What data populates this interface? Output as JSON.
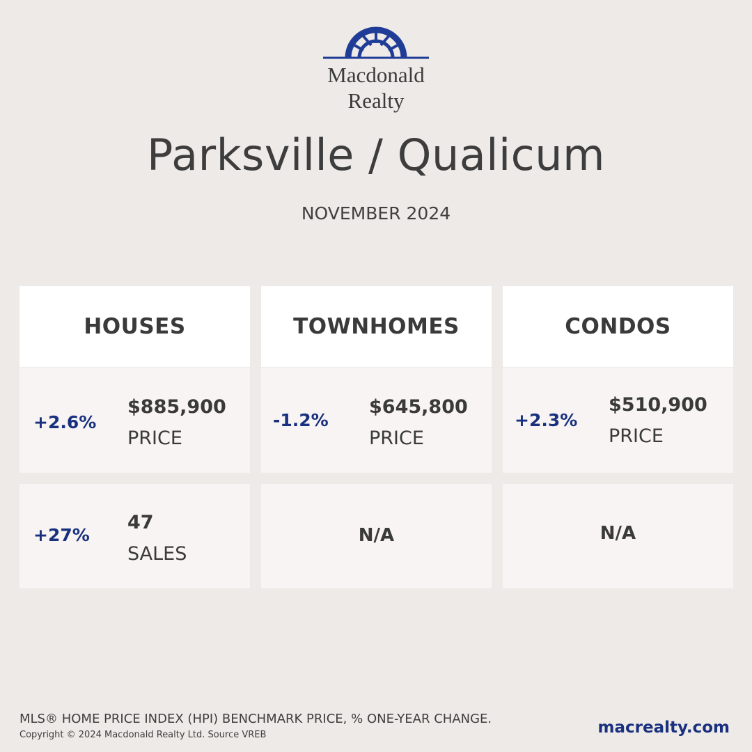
{
  "brand": {
    "name_line1": "Macdonald",
    "name_line2": "Realty",
    "color": "#1f3c96"
  },
  "title": "Parksville / Qualicum",
  "period": "NOVEMBER 2024",
  "categories": [
    {
      "heading": "HOUSES",
      "price": {
        "change": "+2.6%",
        "value": "$885,900",
        "label": "PRICE"
      },
      "sales": {
        "change": "+27%",
        "value": "47",
        "label": "SALES"
      }
    },
    {
      "heading": "TOWNHOMES",
      "price": {
        "change": "-1.2%",
        "value": "$645,800",
        "label": "PRICE"
      },
      "sales": {
        "na": "N/A"
      }
    },
    {
      "heading": "CONDOS",
      "price": {
        "change": "+2.3%",
        "value": "$510,900",
        "label": "PRICE"
      },
      "sales": {
        "na": "N/A"
      }
    }
  ],
  "footer": {
    "note": "MLS® HOME PRICE INDEX (HPI) BENCHMARK PRICE, % ONE-YEAR CHANGE.",
    "copyright": "Copyright © 2024 Macdonald Realty Ltd. Source VREB",
    "website": "macrealty.com"
  },
  "colors": {
    "background": "#eeeae7",
    "accent": "#18307e",
    "card_header": "#ffffff",
    "card_body": "#f7f4f3"
  }
}
